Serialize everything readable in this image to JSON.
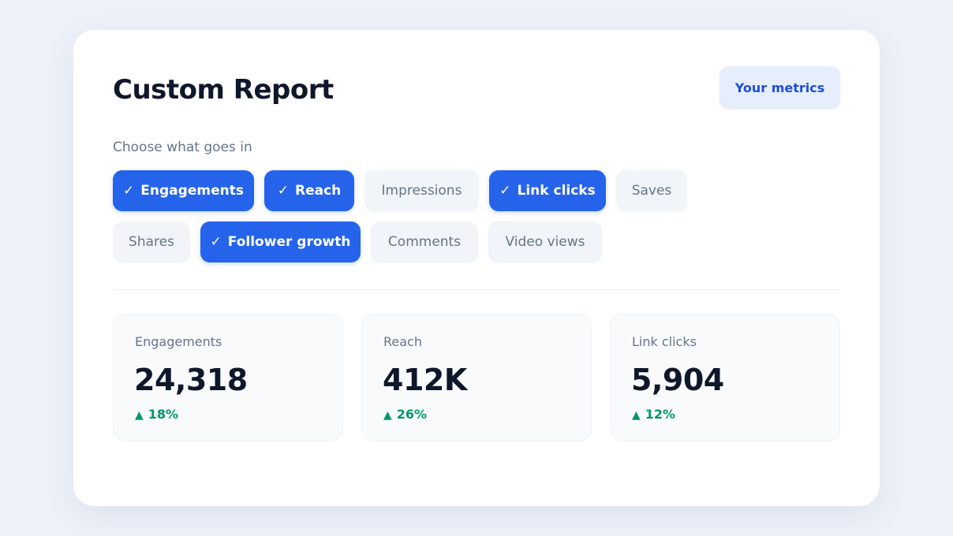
{
  "header": {
    "title": "Custom Report",
    "metrics_button": "Your metrics"
  },
  "chooser": {
    "label": "Choose what goes in",
    "check_glyph": "✓",
    "options": [
      {
        "label": "Engagements",
        "selected": true
      },
      {
        "label": "Reach",
        "selected": true
      },
      {
        "label": "Impressions",
        "selected": false
      },
      {
        "label": "Link clicks",
        "selected": true
      },
      {
        "label": "Saves",
        "selected": false
      },
      {
        "label": "Shares",
        "selected": false
      },
      {
        "label": "Follower growth",
        "selected": true
      },
      {
        "label": "Comments",
        "selected": false
      },
      {
        "label": "Video views",
        "selected": false
      }
    ]
  },
  "stats": [
    {
      "label": "Engagements",
      "value": "24,318",
      "delta": "18%",
      "trend_icon": "triangle-up-icon"
    },
    {
      "label": "Reach",
      "value": "412K",
      "delta": "26%",
      "trend_icon": "triangle-up-icon"
    },
    {
      "label": "Link clicks",
      "value": "5,904",
      "delta": "12%",
      "trend_icon": "triangle-up-icon"
    }
  ],
  "colors": {
    "accent": "#2563eb",
    "positive": "#059669",
    "background": "#edf1f9"
  }
}
